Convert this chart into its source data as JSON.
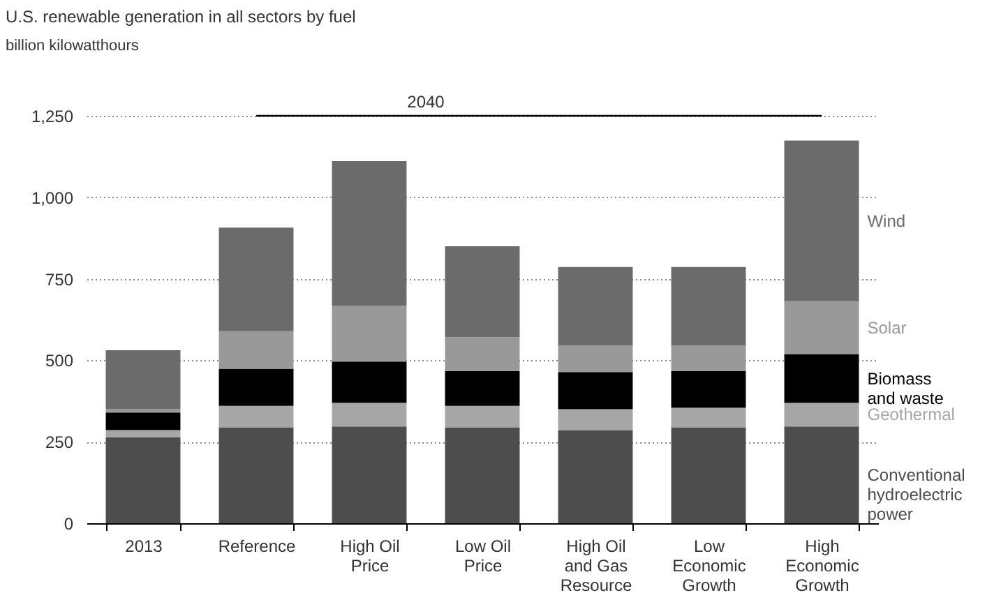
{
  "chart_data": {
    "type": "bar",
    "stacked": true,
    "title": "U.S. renewable generation in all sectors by fuel",
    "subtitle": "billion kilowatthours",
    "annotations": [
      "2040"
    ],
    "categories": [
      "2013",
      "Reference",
      "High Oil Price",
      "Low Oil Price",
      "High Oil and Gas Resource",
      "Low Economic Growth",
      "High Economic Growth"
    ],
    "series": [
      {
        "name": "Conventional hydroelectric power",
        "color": "#4d4d4d",
        "values": [
          264,
          293,
          297,
          293,
          286,
          293,
          297
        ]
      },
      {
        "name": "Geothermal",
        "color": "#a6a6a6",
        "values": [
          22,
          67,
          72,
          67,
          64,
          61,
          72
        ]
      },
      {
        "name": "Biomass and waste",
        "color": "#000000",
        "values": [
          54,
          114,
          127,
          107,
          114,
          113,
          150
        ]
      },
      {
        "name": "Solar",
        "color": "#999999",
        "values": [
          10,
          115,
          171,
          104,
          82,
          79,
          162
        ]
      },
      {
        "name": "Wind",
        "color": "#6b6b6b",
        "values": [
          181,
          318,
          444,
          279,
          240,
          240,
          493
        ]
      }
    ],
    "ylim": [
      0,
      1250
    ],
    "yticks": [
      0,
      250,
      500,
      750,
      {
        "value": 1000,
        "label": "1,000"
      },
      {
        "value": 1250,
        "label": "1,250"
      }
    ],
    "grid": "y"
  }
}
